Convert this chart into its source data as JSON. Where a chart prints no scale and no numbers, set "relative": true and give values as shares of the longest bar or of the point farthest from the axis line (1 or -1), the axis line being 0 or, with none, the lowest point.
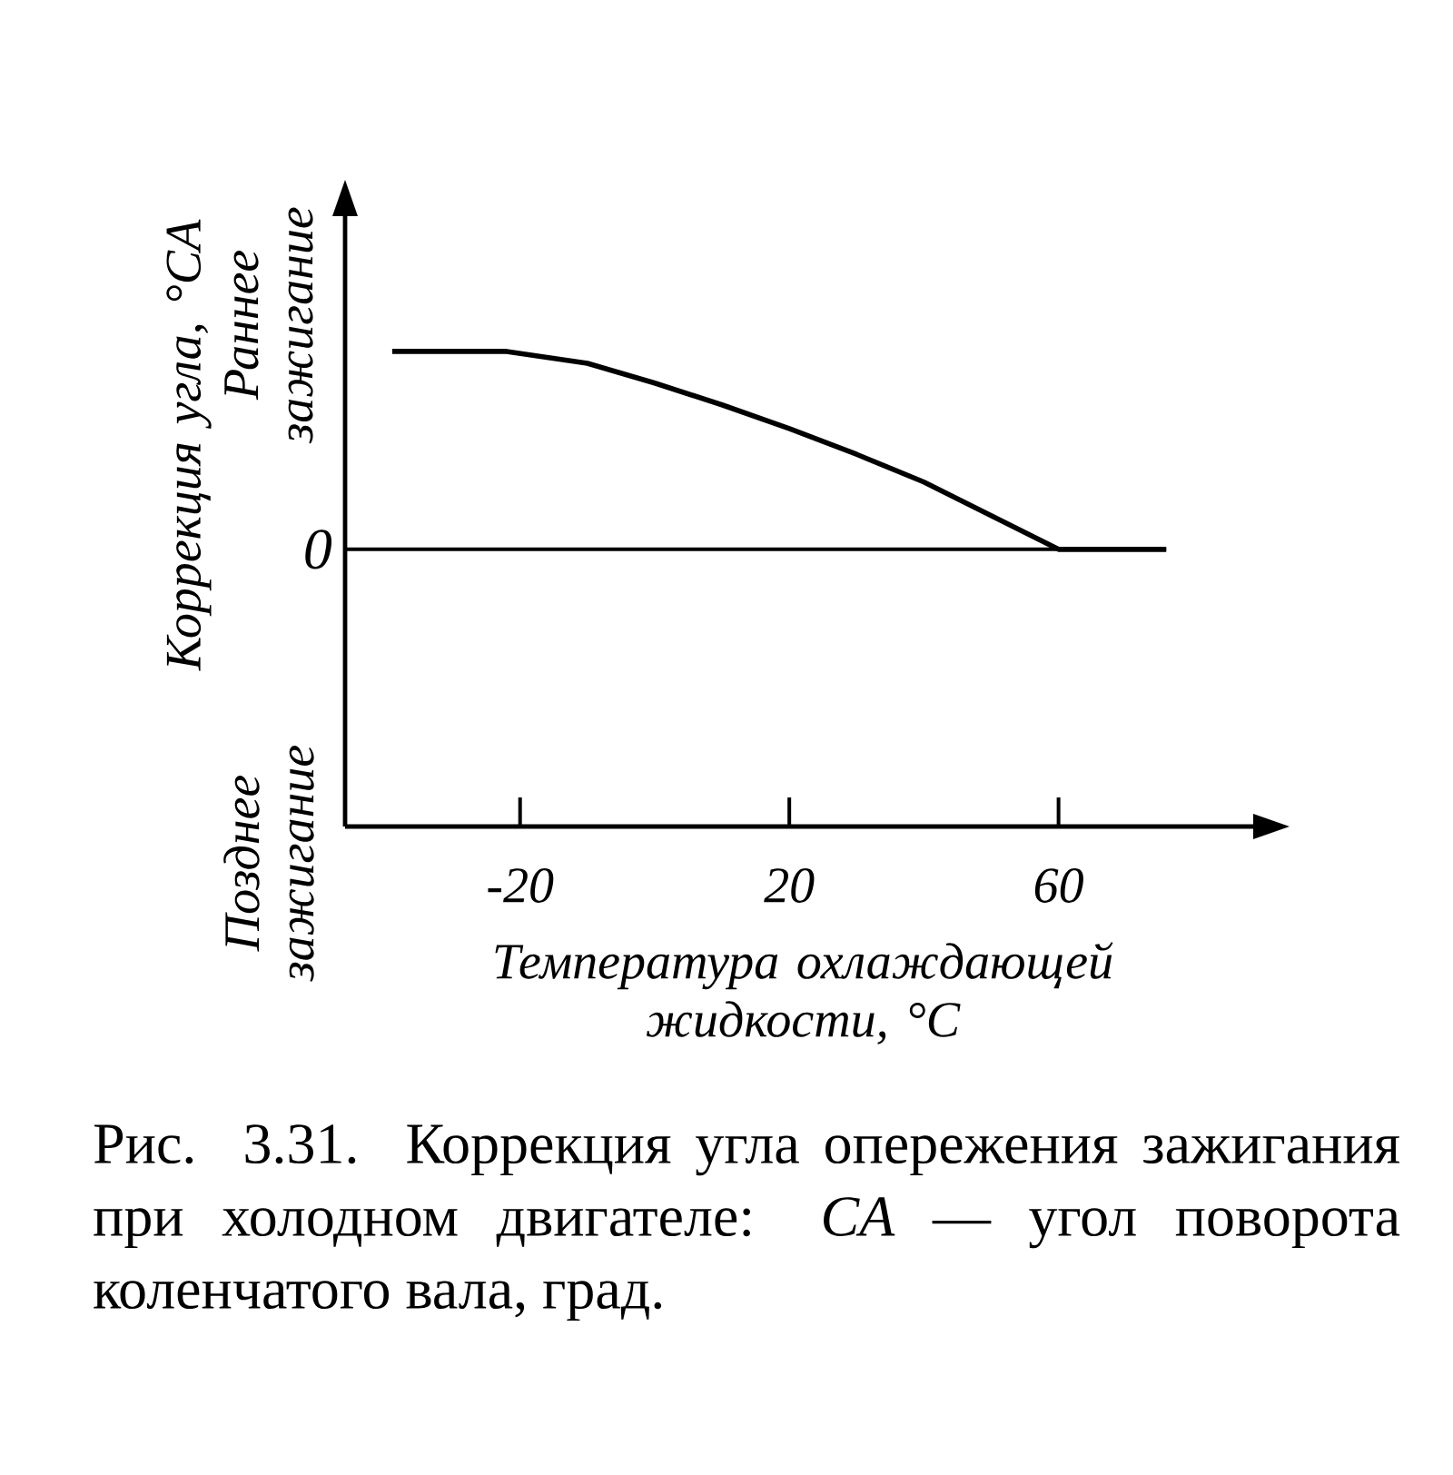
{
  "chart_data": {
    "type": "line",
    "relative": true,
    "ylabel": "Коррекция угла, °CA",
    "xlabel": "Температура охлаждающей жидкости, °C",
    "xlim": [
      -46,
      90
    ],
    "xticks": [
      -20,
      20,
      60
    ],
    "marker": "none",
    "line_style": "solid",
    "series": [
      {
        "color": "#000000",
        "x": [
          -39,
          -22,
          -10,
          0,
          10,
          20,
          30,
          40,
          50,
          60,
          76
        ],
        "values": [
          1,
          1,
          0.94,
          0.84,
          0.73,
          0.61,
          0.48,
          0.34,
          0.17,
          0,
          0
        ]
      }
    ],
    "ref_lines": [
      {
        "axis": "y",
        "value": 0,
        "label": "0"
      }
    ],
    "annotations": [
      "Раннее зажигание",
      "Позднее зажигание",
      "Рис. 3.31. Коррекция угла опережения зажигания при холодном двигателе: *CA* — угол поворота коленчатого вала, град."
    ]
  }
}
